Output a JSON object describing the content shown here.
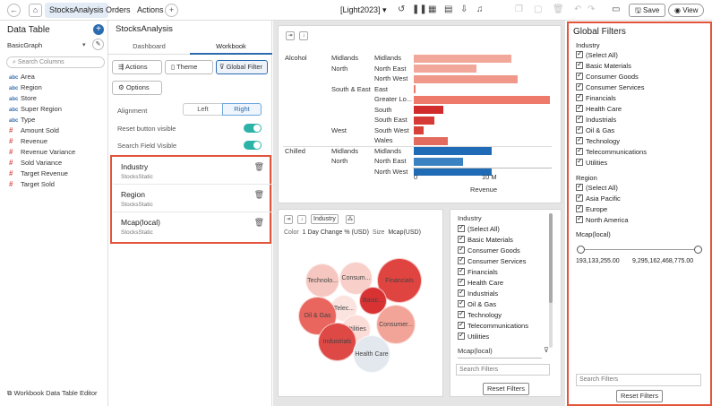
{
  "topbar": {
    "tabs": [
      "StocksAnalysis",
      "Orders",
      "Actions"
    ],
    "theme": "[Light2023]",
    "save_label": "Save",
    "view_label": "View"
  },
  "data_table": {
    "title": "Data Table",
    "source": "BasicGraph",
    "search_placeholder": "Search Columns",
    "columns": [
      {
        "type": "abc",
        "name": "Area"
      },
      {
        "type": "abc",
        "name": "Region"
      },
      {
        "type": "abc",
        "name": "Store"
      },
      {
        "type": "abc",
        "name": "Super Region"
      },
      {
        "type": "abc",
        "name": "Type"
      },
      {
        "type": "#",
        "name": "Amount Sold"
      },
      {
        "type": "#",
        "name": "Revenue"
      },
      {
        "type": "#",
        "name": "Revenue Variance"
      },
      {
        "type": "#",
        "name": "Sold Variance"
      },
      {
        "type": "#",
        "name": "Target Revenue"
      },
      {
        "type": "#",
        "name": "Target Sold"
      }
    ],
    "footer": "Workbook Data Table Editor"
  },
  "workbook": {
    "title": "StocksAnalysis",
    "tab_dashboard": "Dashboard",
    "tab_workbook": "Workbook",
    "actions_label": "Actions",
    "theme_label": "Theme",
    "global_filter_label": "Global Filter",
    "options_label": "Options",
    "alignment_label": "Alignment",
    "align_left": "Left",
    "align_right": "Right",
    "reset_visible_label": "Reset button visible",
    "search_visible_label": "Search Field Visible",
    "filters": [
      {
        "name": "Industry",
        "source": "StocksStatic"
      },
      {
        "name": "Region",
        "source": "StocksStatic"
      },
      {
        "name": "Mcap(local)",
        "source": "StocksStatic"
      }
    ]
  },
  "bar_chart": {
    "groups": [
      {
        "type": "Alcohol",
        "region": "Midlands",
        "area": "Midlands",
        "value": 0.72,
        "color": "#f2a79b"
      },
      {
        "type": "",
        "region": "North",
        "area": "North East",
        "value": 0.46,
        "color": "#f2a79b"
      },
      {
        "type": "",
        "region": "",
        "area": "North West",
        "value": 0.76,
        "color": "#f0988a"
      },
      {
        "type": "",
        "region": "South & East",
        "area": "East",
        "value": 0.01,
        "color": "#e87d6f"
      },
      {
        "type": "",
        "region": "",
        "area": "Greater Lo...",
        "value": 1.0,
        "color": "#ee7a6b"
      },
      {
        "type": "",
        "region": "",
        "area": "South",
        "value": 0.22,
        "color": "#d12b2b"
      },
      {
        "type": "",
        "region": "",
        "area": "South East",
        "value": 0.15,
        "color": "#d63a36"
      },
      {
        "type": "",
        "region": "West",
        "area": "South West",
        "value": 0.07,
        "color": "#d8403a"
      },
      {
        "type": "",
        "region": "",
        "area": "Wales",
        "value": 0.25,
        "color": "#e26b5e"
      },
      {
        "type": "Chilled",
        "region": "Midlands",
        "area": "Midlands",
        "value": 0.57,
        "color": "#1f6bb5"
      },
      {
        "type": "",
        "region": "North",
        "area": "North East",
        "value": 0.36,
        "color": "#3a82c2"
      },
      {
        "type": "",
        "region": "",
        "area": "North West",
        "value": 0.57,
        "color": "#1f6bb5"
      }
    ],
    "axis_ticks": [
      "0",
      "10 M"
    ],
    "axis_label": "Revenue"
  },
  "bubble_chart": {
    "mode_label": "Industry",
    "color_label": "Color",
    "color_value": "1 Day Change % (USD)",
    "size_label": "Size",
    "size_value": "Mcap(USD)",
    "bubbles": [
      {
        "label": "Technolo...",
        "color": "#f6c7c0"
      },
      {
        "label": "Consum...",
        "color": "#f8cfc9"
      },
      {
        "label": "Financials",
        "color": "#e04440"
      },
      {
        "label": "Telec...",
        "color": "#fbe3df"
      },
      {
        "label": "Basic...",
        "color": "#d83233"
      },
      {
        "label": "Oil & Gas",
        "color": "#e8665d"
      },
      {
        "label": "Utilities",
        "color": "#fcdcd7"
      },
      {
        "label": "Consumer...",
        "color": "#f3a498"
      },
      {
        "label": "Industrials",
        "color": "#de4945"
      },
      {
        "label": "Health Care",
        "color": "#e3e8ef"
      }
    ]
  },
  "filter_card": {
    "industry_title": "Industry",
    "industry_items": [
      "(Select All)",
      "Basic Materials",
      "Consumer Goods",
      "Consumer Services",
      "Financials",
      "Health Care",
      "Industrials",
      "Oil & Gas",
      "Technology",
      "Telecommunications",
      "Utilities"
    ],
    "mcap_title": "Mcap(local)",
    "search_placeholder": "Search Filters",
    "reset_label": "Reset Filters"
  },
  "global_filters": {
    "title": "Global Filters",
    "industry_title": "Industry",
    "industry_items": [
      "(Select All)",
      "Basic Materials",
      "Consumer Goods",
      "Consumer Services",
      "Financials",
      "Health Care",
      "Industrials",
      "Oil & Gas",
      "Technology",
      "Telecommunications",
      "Utilities"
    ],
    "region_title": "Region",
    "region_items": [
      "(Select All)",
      "Asia Pacific",
      "Europe",
      "North America"
    ],
    "mcap_title": "Mcap(local)",
    "mcap_min": "193,133,255.00",
    "mcap_max": "9,295,162,468,775.00",
    "search_placeholder": "Search Filters",
    "reset_label": "Reset Filters"
  },
  "colors": {
    "accent": "#2b6cb0",
    "highlight": "#e2553a",
    "toggle": "#2bb3a8"
  }
}
